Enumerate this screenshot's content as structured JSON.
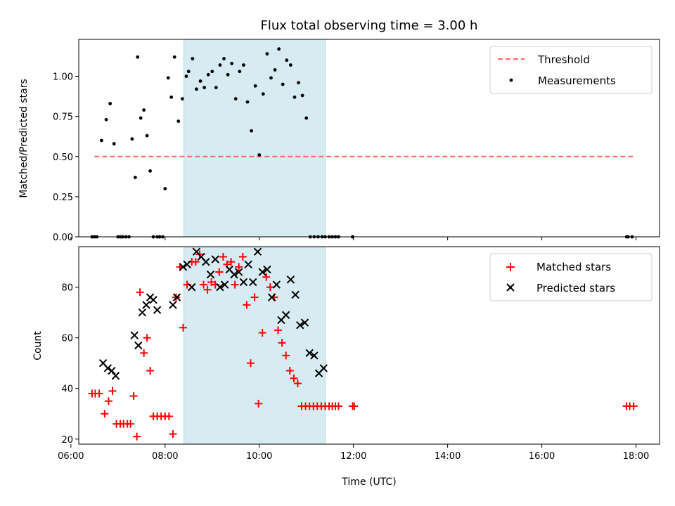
{
  "chart_data": [
    {
      "type": "scatter",
      "title": "Flux total observing time = 3.00 h",
      "ylabel": "Matched/Predicted stars",
      "ylim": [
        0,
        1.23
      ],
      "yticks": [
        "0.00",
        "0.25",
        "0.50",
        "0.75",
        "1.00"
      ],
      "xlim": [
        "06:10",
        "18:30"
      ],
      "shaded_span": {
        "from": "08:24",
        "to": "11:24",
        "color": "#add8e6"
      },
      "legend_position": "upper right",
      "series": [
        {
          "name": "Threshold",
          "kind": "line",
          "style": "dashed",
          "color": "#ff6666",
          "x": [
            "06:30",
            "17:58"
          ],
          "y": [
            0.5,
            0.5
          ]
        },
        {
          "name": "Measurements",
          "kind": "points",
          "color": "#000000",
          "x": [
            "06:27",
            "06:30",
            "06:33",
            "06:39",
            "06:45",
            "06:50",
            "06:55",
            "07:00",
            "07:03",
            "07:06",
            "07:10",
            "07:14",
            "07:18",
            "07:22",
            "07:25",
            "07:29",
            "07:33",
            "07:37",
            "07:41",
            "07:45",
            "07:50",
            "07:53",
            "07:57",
            "08:00",
            "08:04",
            "08:08",
            "08:12",
            "08:17",
            "08:22",
            "08:27",
            "08:30",
            "08:35",
            "08:40",
            "08:45",
            "08:50",
            "08:55",
            "09:00",
            "09:05",
            "09:10",
            "09:15",
            "09:20",
            "09:25",
            "09:30",
            "09:35",
            "09:40",
            "09:45",
            "09:50",
            "09:55",
            "10:00",
            "10:05",
            "10:10",
            "10:15",
            "10:20",
            "10:25",
            "10:30",
            "10:35",
            "10:40",
            "10:45",
            "10:50",
            "10:55",
            "11:00",
            "11:05",
            "11:10",
            "11:15",
            "11:20",
            "11:24",
            "11:29",
            "11:33",
            "11:37",
            "11:41",
            "11:59",
            "11:59",
            "17:48",
            "17:50",
            "17:55"
          ],
          "y": [
            0,
            0,
            0,
            0.6,
            0.73,
            0.83,
            0.58,
            0,
            0,
            0,
            0,
            0,
            0.61,
            0.37,
            1.12,
            0.74,
            0.79,
            0.63,
            0.41,
            0,
            0,
            0,
            0,
            0.3,
            0.99,
            0.87,
            1.12,
            0.72,
            0.86,
            1.0,
            1.03,
            1.11,
            0.92,
            0.97,
            0.93,
            1.01,
            1.03,
            0.93,
            1.07,
            1.11,
            1.01,
            1.08,
            0.86,
            1.03,
            1.07,
            0.84,
            0.66,
            0.94,
            0.51,
            0.89,
            1.14,
            0.99,
            1.04,
            1.17,
            0.95,
            1.1,
            1.07,
            0.87,
            0.96,
            0.88,
            0.74,
            0,
            0,
            0,
            0,
            0,
            0,
            0,
            0,
            0,
            0,
            0,
            0,
            0,
            0
          ]
        }
      ]
    },
    {
      "type": "scatter",
      "xlabel": "Time (UTC)",
      "ylabel": "Count",
      "ylim": [
        18,
        96
      ],
      "yticks": [
        "20",
        "40",
        "60",
        "80"
      ],
      "xlim": [
        "06:10",
        "18:30"
      ],
      "xticks": [
        "06:00",
        "08:00",
        "10:00",
        "12:00",
        "14:00",
        "16:00",
        "18:00"
      ],
      "shaded_span": {
        "from": "08:24",
        "to": "11:24",
        "color": "#add8e6"
      },
      "legend_position": "upper right",
      "series": [
        {
          "name": "Matched stars",
          "marker": "plus",
          "color": "#ff0000",
          "x": [
            "06:27",
            "06:31",
            "06:36",
            "06:43",
            "06:48",
            "06:53",
            "06:58",
            "07:03",
            "07:07",
            "07:12",
            "07:16",
            "07:20",
            "07:24",
            "07:28",
            "07:33",
            "07:37",
            "07:41",
            "07:45",
            "07:50",
            "07:55",
            "08:00",
            "08:05",
            "08:10",
            "08:14",
            "08:19",
            "08:23",
            "08:28",
            "08:34",
            "08:39",
            "08:44",
            "08:49",
            "08:54",
            "08:59",
            "09:04",
            "09:09",
            "09:14",
            "09:19",
            "09:24",
            "09:29",
            "09:34",
            "09:39",
            "09:44",
            "09:49",
            "09:54",
            "09:59",
            "10:04",
            "10:09",
            "10:14",
            "10:19",
            "10:24",
            "10:29",
            "10:34",
            "10:39",
            "10:44",
            "10:49",
            "10:54",
            "10:59",
            "11:04",
            "11:09",
            "11:14",
            "11:19",
            "11:24",
            "11:29",
            "11:33",
            "11:37",
            "11:41",
            "11:59",
            "12:01",
            "17:48",
            "17:52",
            "17:57"
          ],
          "y": [
            38,
            38,
            38,
            30,
            35,
            39,
            26,
            26,
            26,
            26,
            26,
            37,
            21,
            78,
            54,
            60,
            47,
            29,
            29,
            29,
            29,
            29,
            22,
            76,
            88,
            64,
            81,
            90,
            90,
            93,
            81,
            79,
            82,
            81,
            86,
            92,
            89,
            90,
            81,
            88,
            92,
            73,
            50,
            76,
            34,
            62,
            84,
            80,
            76,
            63,
            58,
            53,
            47,
            44,
            42,
            33,
            33,
            33,
            33,
            33,
            33,
            33,
            33,
            33,
            33,
            33,
            33,
            33,
            33,
            33,
            33
          ]
        },
        {
          "name": "Predicted stars",
          "marker": "x",
          "color": "#000000",
          "x": [
            "06:41",
            "06:47",
            "06:52",
            "06:57",
            "07:21",
            "07:26",
            "07:31",
            "07:36",
            "07:41",
            "07:45",
            "07:50",
            "08:10",
            "08:15",
            "08:23",
            "08:28",
            "08:34",
            "08:40",
            "08:46",
            "08:52",
            "08:58",
            "09:04",
            "09:10",
            "09:16",
            "09:22",
            "09:28",
            "09:34",
            "09:40",
            "09:46",
            "09:52",
            "09:58",
            "10:04",
            "10:10",
            "10:16",
            "10:22",
            "10:28",
            "10:34",
            "10:40",
            "10:46",
            "10:52",
            "10:58",
            "11:04",
            "11:10",
            "11:16",
            "11:22"
          ],
          "y": [
            50,
            48,
            47,
            45,
            61,
            57,
            70,
            73,
            76,
            75,
            71,
            73,
            76,
            88,
            89,
            80,
            94,
            92,
            90,
            85,
            91,
            80,
            81,
            87,
            85,
            86,
            82,
            89,
            82,
            94,
            86,
            87,
            76,
            81,
            67,
            69,
            83,
            77,
            65,
            66,
            54,
            53,
            46,
            48
          ]
        }
      ]
    }
  ]
}
